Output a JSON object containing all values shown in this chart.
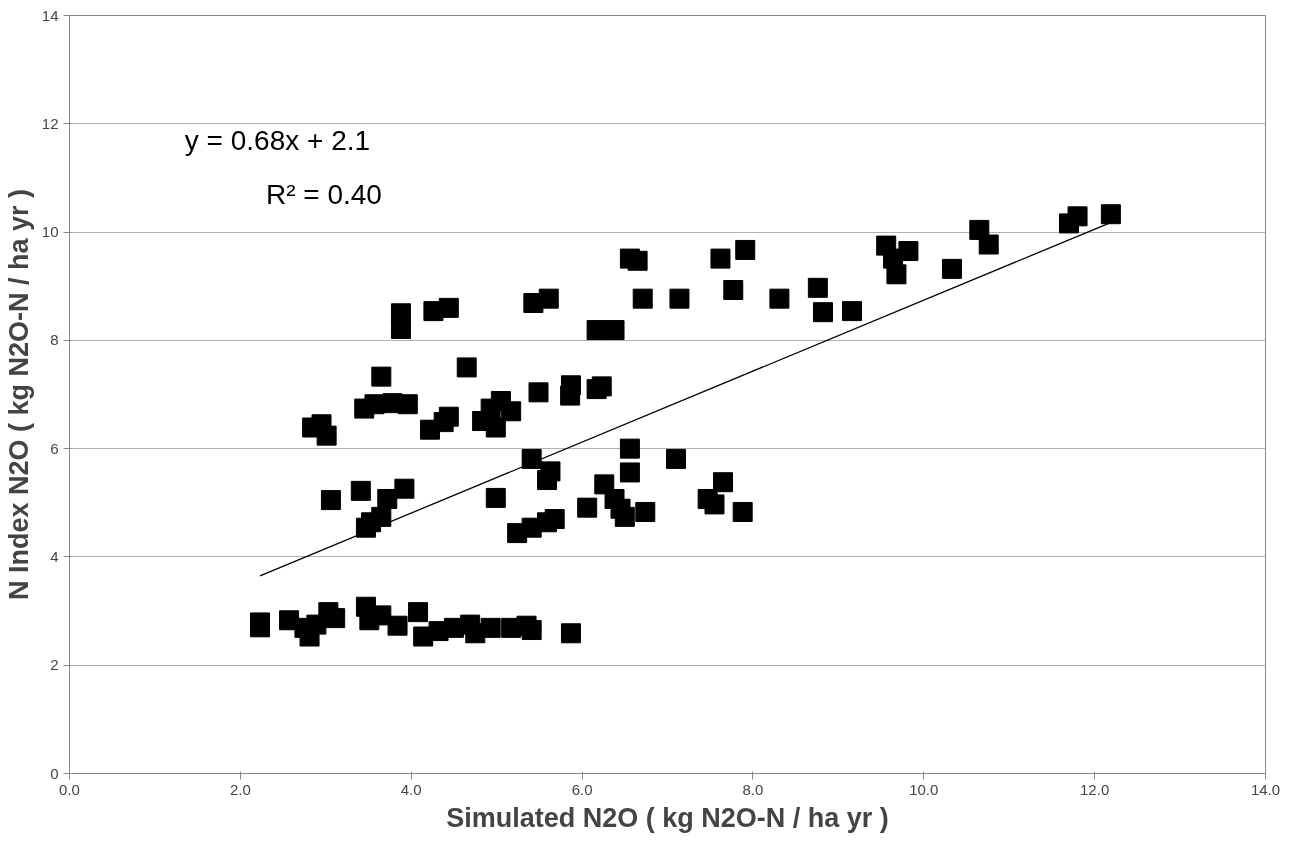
{
  "chart_data": {
    "type": "scatter",
    "xlabel": "Simulated N2O ( kg N2O-N / ha yr )",
    "ylabel": "N Index N2O ( kg N2O-N / ha yr )",
    "xlim": [
      0,
      14
    ],
    "ylim": [
      0,
      14
    ],
    "xticks": [
      {
        "value": 0,
        "label": "0.0"
      },
      {
        "value": 2,
        "label": "2.0"
      },
      {
        "value": 4,
        "label": "4.0"
      },
      {
        "value": 6,
        "label": "6.0"
      },
      {
        "value": 8,
        "label": "8.0"
      },
      {
        "value": 10,
        "label": "10.0"
      },
      {
        "value": 12,
        "label": "12.0"
      },
      {
        "value": 14,
        "label": "14.0"
      }
    ],
    "yticks": [
      0,
      2,
      4,
      6,
      8,
      10,
      12,
      14
    ],
    "grid": "y",
    "annotations": [
      "y = 0.68x + 2.1",
      "R² = 0.40"
    ],
    "series": [
      {
        "color": "#000000",
        "marker": "square",
        "x": [
          2.23,
          2.23,
          2.57,
          2.75,
          2.81,
          2.89,
          3.03,
          3.11,
          3.47,
          3.51,
          3.65,
          3.84,
          4.08,
          4.14,
          4.32,
          4.5,
          4.69,
          4.75,
          4.93,
          5.17,
          5.35,
          5.41,
          5.87,
          3.06,
          3.41,
          3.47,
          3.53,
          3.65,
          3.72,
          3.92,
          4.99,
          5.24,
          5.41,
          5.59,
          5.68,
          5.41,
          5.59,
          5.63,
          6.06,
          6.26,
          6.38,
          6.45,
          6.5,
          6.56,
          6.56,
          6.74,
          7.1,
          7.47,
          7.55,
          7.65,
          7.88,
          2.84,
          2.95,
          3.01,
          3.45,
          3.65,
          3.57,
          3.78,
          3.96,
          4.22,
          4.38,
          4.44,
          4.65,
          4.83,
          4.93,
          4.99,
          5.05,
          5.17,
          5.49,
          5.86,
          5.87,
          6.17,
          6.23,
          3.88,
          3.88,
          4.26,
          4.44,
          5.43,
          5.61,
          6.17,
          6.38,
          6.56,
          6.65,
          6.71,
          7.14,
          7.62,
          7.91,
          7.77,
          8.31,
          8.76,
          8.82,
          9.16,
          9.56,
          9.64,
          9.68,
          9.82,
          10.33,
          10.65,
          10.76,
          11.7,
          11.8,
          12.19
        ],
        "values": [
          2.79,
          2.7,
          2.83,
          2.69,
          2.53,
          2.75,
          2.98,
          2.87,
          3.08,
          2.83,
          2.92,
          2.73,
          2.98,
          2.53,
          2.63,
          2.69,
          2.75,
          2.59,
          2.69,
          2.69,
          2.73,
          2.65,
          2.59,
          5.05,
          5.22,
          4.54,
          4.64,
          4.74,
          5.07,
          5.26,
          5.09,
          4.44,
          4.54,
          4.64,
          4.7,
          5.81,
          5.42,
          5.58,
          4.91,
          5.34,
          5.07,
          4.89,
          4.74,
          6.0,
          5.56,
          4.83,
          5.81,
          5.07,
          4.97,
          5.38,
          4.83,
          6.39,
          6.45,
          6.24,
          6.74,
          7.33,
          6.82,
          6.84,
          6.82,
          6.35,
          6.49,
          6.59,
          7.5,
          6.51,
          6.74,
          6.39,
          6.88,
          6.69,
          7.04,
          6.98,
          7.17,
          7.1,
          7.15,
          8.5,
          8.21,
          8.54,
          8.6,
          8.69,
          8.77,
          8.19,
          8.19,
          9.51,
          9.47,
          8.77,
          8.77,
          9.51,
          9.67,
          8.93,
          8.77,
          8.97,
          8.52,
          8.54,
          9.75,
          9.51,
          9.22,
          9.65,
          9.32,
          10.04,
          9.77,
          10.16,
          10.29,
          10.33
        ]
      },
      {
        "type": "line",
        "marker": "none",
        "color": "#000000",
        "x": [
          2.23,
          12.3
        ],
        "values": [
          3.65,
          10.25
        ]
      }
    ]
  }
}
